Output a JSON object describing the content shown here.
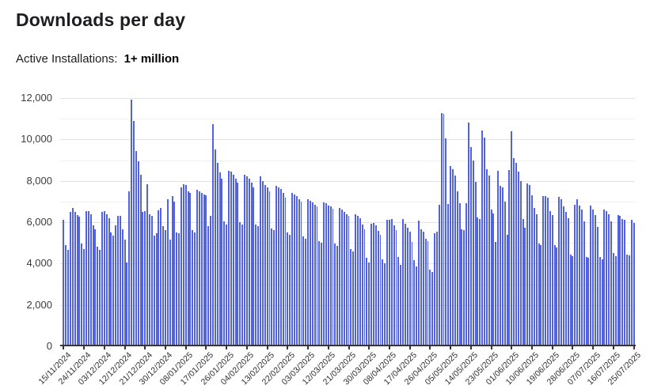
{
  "header": {
    "title": "Downloads per day",
    "subtitle_label": "Active Installations:",
    "subtitle_value": "1+ million"
  },
  "chart_data": {
    "type": "bar",
    "title": "Downloads per day",
    "xlabel": "",
    "ylabel": "",
    "ylim": [
      0,
      12000
    ],
    "y_major_ticks": [
      0,
      2000,
      4000,
      6000,
      8000,
      10000,
      12000
    ],
    "y_minor_gridline_step": 1000,
    "grid": true,
    "legend": "none",
    "bar_color": "#5163e4",
    "start_date": "15/11/2024",
    "end_date": "25/07/2025",
    "x_tick_interval_days": 9,
    "x_tick_labels": [
      "15/11/2024",
      "24/11/2024",
      "03/12/2024",
      "12/12/2024",
      "21/12/2024",
      "30/12/2024",
      "08/01/2025",
      "17/01/2025",
      "26/01/2025",
      "04/02/2025",
      "13/02/2025",
      "22/02/2025",
      "03/03/2025",
      "12/03/2025",
      "21/03/2025",
      "30/03/2025",
      "08/04/2025",
      "17/04/2025",
      "26/04/2025",
      "05/05/2025",
      "14/05/2025",
      "23/05/2025",
      "01/06/2025",
      "10/06/2025",
      "19/06/2025",
      "28/06/2025",
      "07/07/2025",
      "16/07/2025",
      "25/07/2025"
    ],
    "values": [
      6100,
      4900,
      4650,
      6500,
      6700,
      6500,
      6350,
      6250,
      4950,
      4700,
      6550,
      6550,
      6400,
      5850,
      5650,
      4800,
      4650,
      6500,
      6550,
      6400,
      6200,
      5500,
      5350,
      5850,
      6300,
      6300,
      5650,
      5150,
      4050,
      7500,
      11930,
      10880,
      9450,
      8950,
      8280,
      6500,
      6550,
      7850,
      6380,
      6290,
      5370,
      5450,
      6590,
      6700,
      5800,
      5600,
      7100,
      5150,
      7260,
      7000,
      5500,
      5450,
      7700,
      7850,
      7800,
      7500,
      7400,
      5600,
      5500,
      7560,
      7500,
      7400,
      7350,
      7300,
      5800,
      6300,
      10750,
      9500,
      8850,
      8400,
      8100,
      6050,
      5900,
      8500,
      8450,
      8300,
      8100,
      7900,
      6000,
      5900,
      8300,
      8200,
      8100,
      7900,
      7700,
      5900,
      5800,
      8200,
      8000,
      7800,
      7700,
      7500,
      5700,
      5600,
      7750,
      7700,
      7600,
      7400,
      7200,
      5500,
      5400,
      7400,
      7350,
      7250,
      7100,
      7000,
      5300,
      5200,
      7100,
      7050,
      6950,
      6850,
      6750,
      5100,
      5000,
      6950,
      6900,
      6800,
      6750,
      6650,
      4950,
      4850,
      6700,
      6600,
      6500,
      6400,
      6300,
      4700,
      4600,
      6390,
      6290,
      6190,
      5900,
      5660,
      4280,
      4060,
      5940,
      5975,
      5850,
      5590,
      5400,
      4190,
      4000,
      6100,
      6130,
      6140,
      5850,
      5600,
      4320,
      3950,
      6165,
      5910,
      5720,
      5540,
      5040,
      4170,
      3875,
      6060,
      5660,
      5530,
      5215,
      5090,
      3720,
      3585,
      5470,
      5560,
      6830,
      11270,
      11230,
      10070,
      6870,
      8700,
      8580,
      8270,
      7500,
      6900,
      5670,
      5600,
      6900,
      10800,
      9620,
      9000,
      7950,
      6230,
      6150,
      10450,
      10100,
      8580,
      8250,
      6600,
      6420,
      5060,
      8490,
      7760,
      7670,
      6990,
      5400,
      8540,
      10400,
      9090,
      8860,
      8450,
      7990,
      6140,
      5720,
      7890,
      7800,
      7310,
      6670,
      6400,
      4960,
      4900,
      7280,
      7280,
      7180,
      6540,
      6360,
      4890,
      4770,
      7220,
      7100,
      6780,
      6480,
      6200,
      4420,
      4360,
      6840,
      7120,
      6800,
      6610,
      6040,
      4320,
      4280,
      6800,
      6610,
      6360,
      5790,
      4320,
      4190,
      6610,
      6550,
      6400,
      6050,
      4500,
      4350,
      6350,
      6300,
      6150,
      6100,
      4450,
      4400,
      6100,
      5950
    ]
  }
}
